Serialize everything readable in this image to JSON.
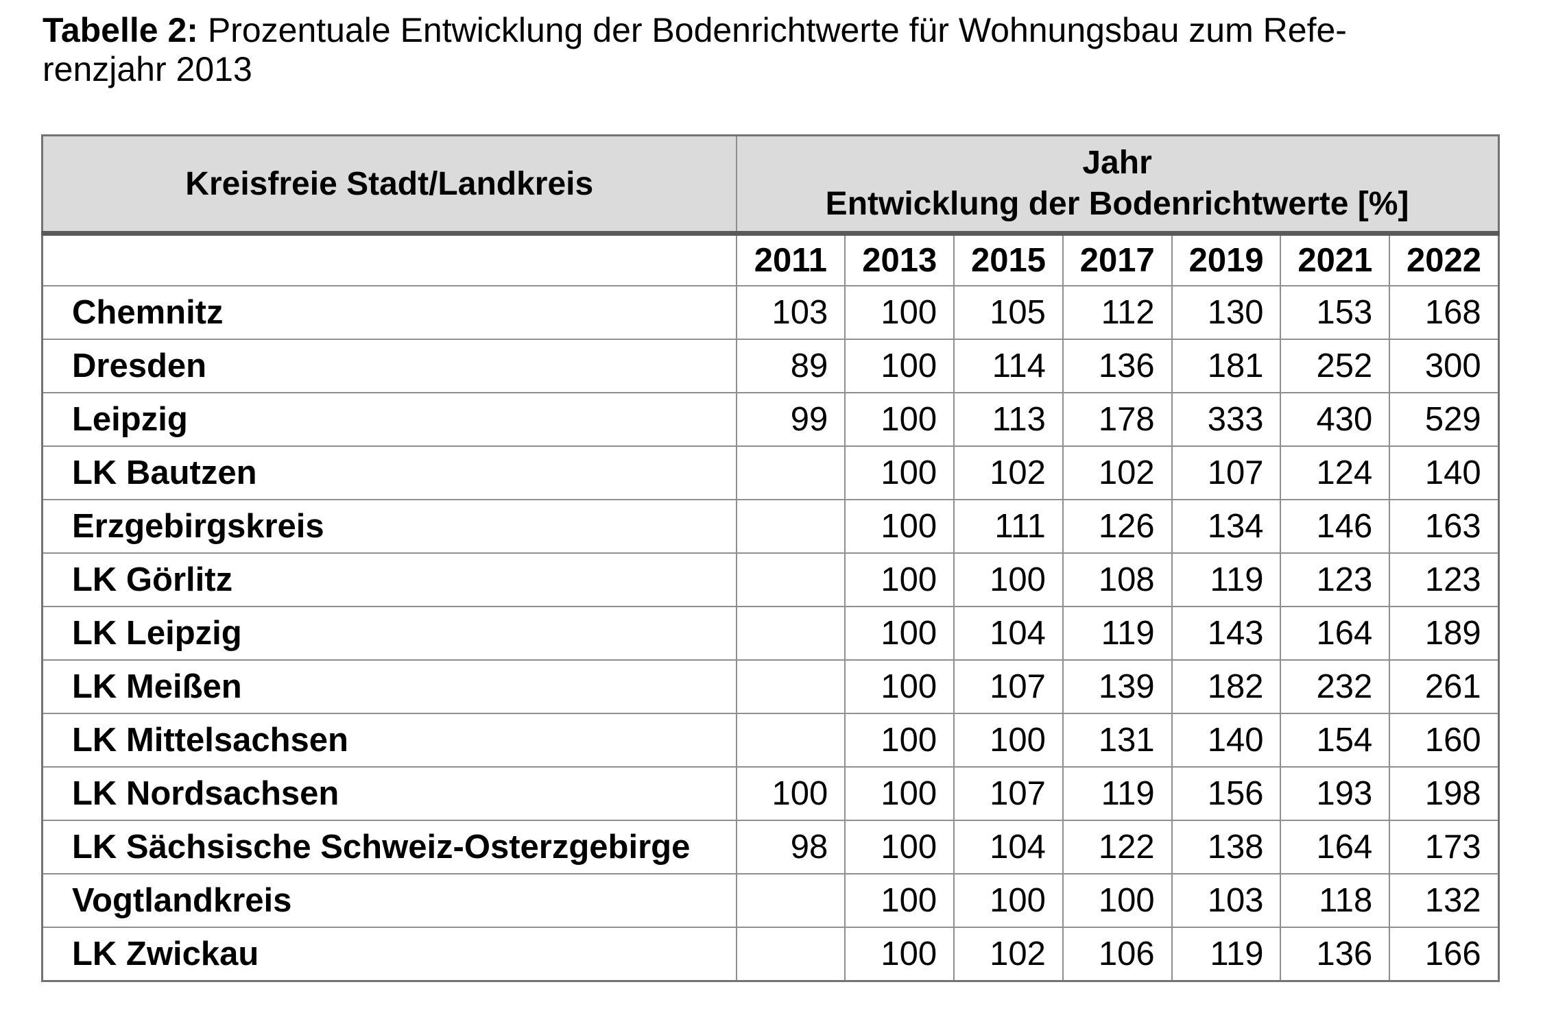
{
  "title": {
    "label": "Tabelle 2:",
    "line1_rest": " Prozentuale Entwicklung der Bodenrichtwerte für Wohnungsbau zum Refe-",
    "line2": "renzjahr 2013"
  },
  "table": {
    "col1_header": "Kreisfreie Stadt/Landkreis",
    "year_header_line1": "Jahr",
    "year_header_line2": "Entwicklung der Bodenrichtwerte [%]",
    "years": [
      "2011",
      "2013",
      "2015",
      "2017",
      "2019",
      "2021",
      "2022"
    ],
    "rows": [
      {
        "name": "Chemnitz",
        "values": [
          "103",
          "100",
          "105",
          "112",
          "130",
          "153",
          "168"
        ]
      },
      {
        "name": "Dresden",
        "values": [
          "89",
          "100",
          "114",
          "136",
          "181",
          "252",
          "300"
        ]
      },
      {
        "name": "Leipzig",
        "values": [
          "99",
          "100",
          "113",
          "178",
          "333",
          "430",
          "529"
        ]
      },
      {
        "name": "LK Bautzen",
        "values": [
          "",
          "100",
          "102",
          "102",
          "107",
          "124",
          "140"
        ]
      },
      {
        "name": "Erzgebirgskreis",
        "values": [
          "",
          "100",
          "111",
          "126",
          "134",
          "146",
          "163"
        ]
      },
      {
        "name": "LK Görlitz",
        "values": [
          "",
          "100",
          "100",
          "108",
          "119",
          "123",
          "123"
        ]
      },
      {
        "name": "LK Leipzig",
        "values": [
          "",
          "100",
          "104",
          "119",
          "143",
          "164",
          "189"
        ]
      },
      {
        "name": "LK Meißen",
        "values": [
          "",
          "100",
          "107",
          "139",
          "182",
          "232",
          "261"
        ]
      },
      {
        "name": "LK Mittelsachsen",
        "values": [
          "",
          "100",
          "100",
          "131",
          "140",
          "154",
          "160"
        ]
      },
      {
        "name": "LK Nordsachsen",
        "values": [
          "100",
          "100",
          "107",
          "119",
          "156",
          "193",
          "198"
        ]
      },
      {
        "name": "LK Sächsische Schweiz-Osterzgebirge",
        "values": [
          "98",
          "100",
          "104",
          "122",
          "138",
          "164",
          "173"
        ]
      },
      {
        "name": "Vogtlandkreis",
        "values": [
          "",
          "100",
          "100",
          "100",
          "103",
          "118",
          "132"
        ]
      },
      {
        "name": "LK Zwickau",
        "values": [
          "",
          "100",
          "102",
          "106",
          "119",
          "136",
          "166"
        ]
      }
    ],
    "colors": {
      "header_background": "#dbdbdb",
      "grid_border": "#8f8f8f",
      "outer_border": "#737373",
      "header_underline": "#5a5a5a",
      "text": "#000000"
    }
  },
  "chart_data": {
    "type": "table",
    "title": "Tabelle 2: Prozentuale Entwicklung der Bodenrichtwerte für Wohnungsbau zum Referenzjahr 2013",
    "columns": [
      "Kreisfreie Stadt/Landkreis",
      "2011",
      "2013",
      "2015",
      "2017",
      "2019",
      "2021",
      "2022"
    ],
    "rows": [
      [
        "Chemnitz",
        103,
        100,
        105,
        112,
        130,
        153,
        168
      ],
      [
        "Dresden",
        89,
        100,
        114,
        136,
        181,
        252,
        300
      ],
      [
        "Leipzig",
        99,
        100,
        113,
        178,
        333,
        430,
        529
      ],
      [
        "LK Bautzen",
        null,
        100,
        102,
        102,
        107,
        124,
        140
      ],
      [
        "Erzgebirgskreis",
        null,
        100,
        111,
        126,
        134,
        146,
        163
      ],
      [
        "LK Görlitz",
        null,
        100,
        100,
        108,
        119,
        123,
        123
      ],
      [
        "LK Leipzig",
        null,
        100,
        104,
        119,
        143,
        164,
        189
      ],
      [
        "LK Meißen",
        null,
        100,
        107,
        139,
        182,
        232,
        261
      ],
      [
        "LK Mittelsachsen",
        null,
        100,
        100,
        131,
        140,
        154,
        160
      ],
      [
        "LK Nordsachsen",
        100,
        100,
        107,
        119,
        156,
        193,
        198
      ],
      [
        "LK Sächsische Schweiz-Osterzgebirge",
        98,
        100,
        104,
        122,
        138,
        164,
        173
      ],
      [
        "Vogtlandkreis",
        null,
        100,
        100,
        100,
        103,
        118,
        132
      ],
      [
        "LK Zwickau",
        null,
        100,
        102,
        106,
        119,
        136,
        166
      ]
    ],
    "unit": "percent, Referenzjahr 2013 = 100"
  }
}
